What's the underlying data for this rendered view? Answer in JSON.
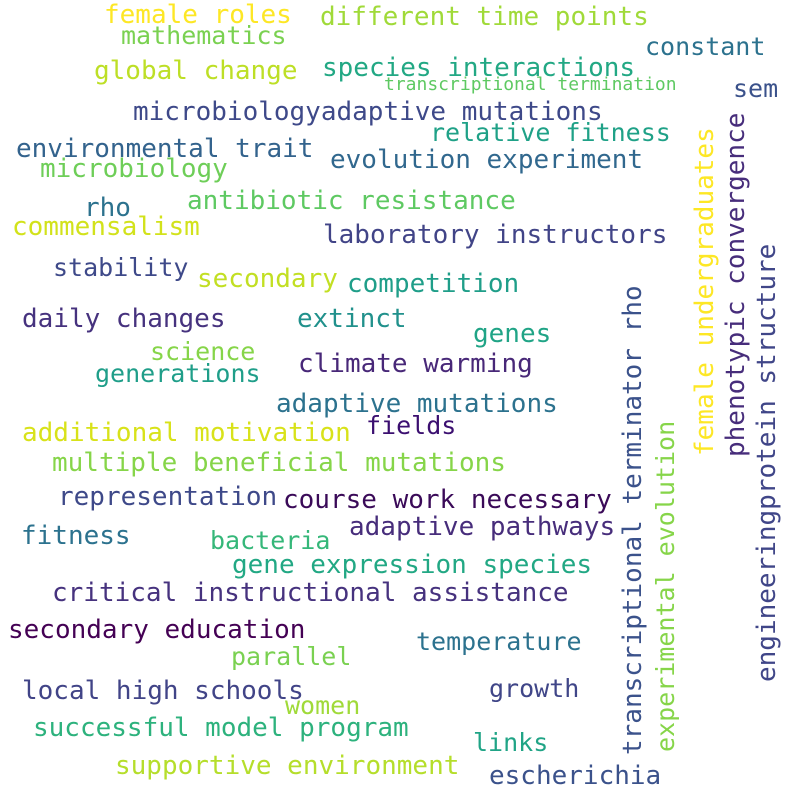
{
  "words": [
    {
      "text": "female roles",
      "color": "#fde725"
    },
    {
      "text": "different time points",
      "color": "#a0da39"
    },
    {
      "text": "mathematics",
      "color": "#7ad151"
    },
    {
      "text": "constant",
      "color": "#2c728e"
    },
    {
      "text": "global change",
      "color": "#bddf26"
    },
    {
      "text": "species interactions",
      "color": "#22a884"
    },
    {
      "text": "transcriptional termination",
      "color": "#5ec962"
    },
    {
      "text": "sem",
      "color": "#3b528b"
    },
    {
      "text": "microbiologyadaptive mutations",
      "color": "#3e4989"
    },
    {
      "text": "relative fitness",
      "color": "#1fa187"
    },
    {
      "text": "environmental trait",
      "color": "#33638d"
    },
    {
      "text": "evolution experiment",
      "color": "#31688e"
    },
    {
      "text": "microbiology",
      "color": "#6ece58"
    },
    {
      "text": "antibiotic resistance",
      "color": "#5ec962"
    },
    {
      "text": "rho",
      "color": "#2c728e"
    },
    {
      "text": "commensalism",
      "color": "#d2e21b"
    },
    {
      "text": "laboratory instructors",
      "color": "#414487"
    },
    {
      "text": "stability",
      "color": "#3e4989"
    },
    {
      "text": "secondary",
      "color": "#c2df23"
    },
    {
      "text": "competition",
      "color": "#1f9e89"
    },
    {
      "text": "daily changes",
      "color": "#46327e"
    },
    {
      "text": "extinct",
      "color": "#21918c"
    },
    {
      "text": "genes",
      "color": "#20a486"
    },
    {
      "text": "science",
      "color": "#86d549"
    },
    {
      "text": "climate warming",
      "color": "#482878"
    },
    {
      "text": "generations",
      "color": "#1f9e89"
    },
    {
      "text": "adaptive mutations",
      "color": "#2c728e"
    },
    {
      "text": "fields",
      "color": "#3b0f70"
    },
    {
      "text": "additional motivation",
      "color": "#d8e219"
    },
    {
      "text": "multiple beneficial mutations",
      "color": "#86d549"
    },
    {
      "text": "representation",
      "color": "#3e4989"
    },
    {
      "text": "course work necessary",
      "color": "#3a0a58"
    },
    {
      "text": "adaptive pathways",
      "color": "#472d7b"
    },
    {
      "text": "fitness",
      "color": "#2c728e"
    },
    {
      "text": "bacteria",
      "color": "#35b779"
    },
    {
      "text": "gene expression species",
      "color": "#22a884"
    },
    {
      "text": "critical instructional assistance",
      "color": "#46327e"
    },
    {
      "text": "secondary education",
      "color": "#440154"
    },
    {
      "text": "temperature",
      "color": "#2c728e"
    },
    {
      "text": "parallel",
      "color": "#7ad151"
    },
    {
      "text": "local high schools",
      "color": "#414487"
    },
    {
      "text": "growth",
      "color": "#404688"
    },
    {
      "text": "women",
      "color": "#a0da39"
    },
    {
      "text": "successful model program",
      "color": "#2db27d"
    },
    {
      "text": "links",
      "color": "#20a486"
    },
    {
      "text": "supportive environment",
      "color": "#b5de2b"
    },
    {
      "text": "escherichia",
      "color": "#3b528b"
    },
    {
      "text": "transcriptional terminator rho",
      "color": "#3b528b"
    },
    {
      "text": "experimental evolution",
      "color": "#86d549"
    },
    {
      "text": "female undergraduates",
      "color": "#fde725"
    },
    {
      "text": "phenotypic convergence",
      "color": "#472d7b"
    },
    {
      "text": "engineeringprotein structure",
      "color": "#404688"
    }
  ]
}
